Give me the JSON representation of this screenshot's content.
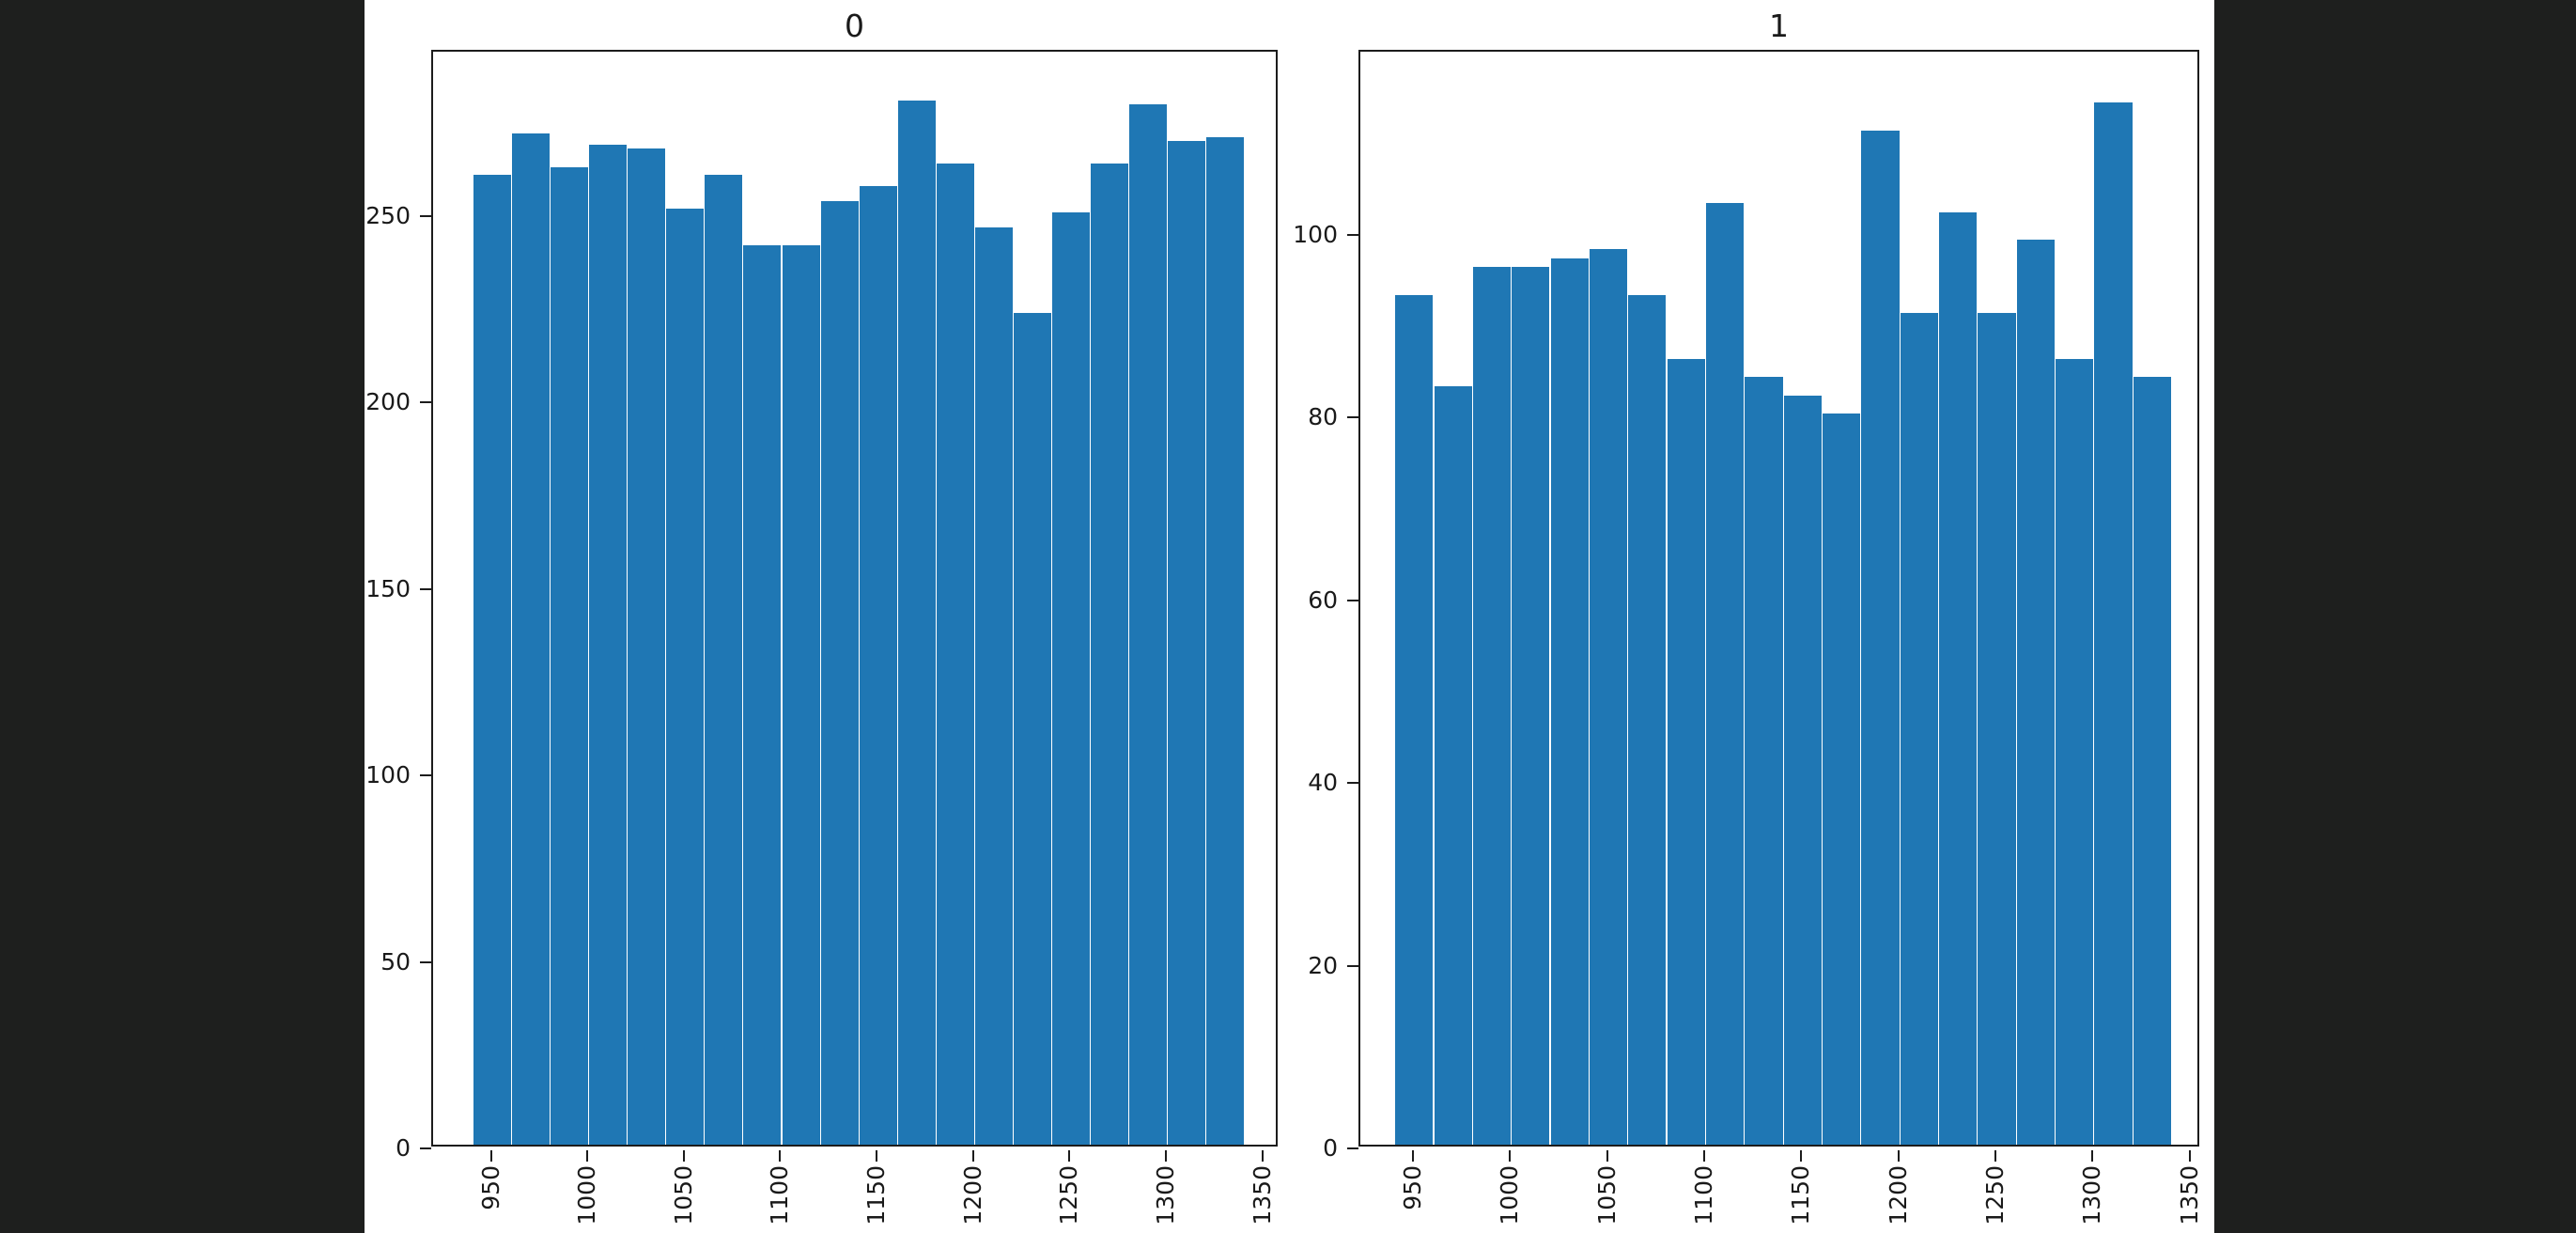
{
  "page": {
    "background_color": "#1e1f1e",
    "figure_background_color": "#ffffff",
    "spine_color": "#1c1c1c",
    "text_color": "#1a1a1a"
  },
  "chart_data": [
    {
      "type": "bar",
      "subtype": "histogram",
      "title": "0",
      "bar_color": "#1f77b4",
      "bin_start": 941,
      "bin_width": 20,
      "values": [
        260,
        271,
        262,
        268,
        267,
        251,
        260,
        241,
        241,
        253,
        257,
        280,
        263,
        246,
        223,
        250,
        263,
        279,
        269,
        270
      ],
      "x_ticks": [
        950,
        1000,
        1050,
        1100,
        1150,
        1200,
        1250,
        1300,
        1350
      ],
      "y_ticks": [
        0,
        50,
        100,
        150,
        200,
        250
      ],
      "xlim": [
        920,
        1359
      ],
      "ylim": [
        0,
        294
      ],
      "x_tick_rotation": 90,
      "grid": false,
      "legend": null,
      "xlabel": "",
      "ylabel": ""
    },
    {
      "type": "bar",
      "subtype": "histogram",
      "title": "1",
      "bar_color": "#1f77b4",
      "bin_start": 941,
      "bin_width": 20,
      "values": [
        93,
        83,
        96,
        96,
        97,
        98,
        93,
        86,
        103,
        84,
        82,
        80,
        111,
        91,
        102,
        91,
        99,
        86,
        114,
        84
      ],
      "x_ticks": [
        950,
        1000,
        1050,
        1100,
        1150,
        1200,
        1250,
        1300,
        1350
      ],
      "y_ticks": [
        0,
        20,
        40,
        60,
        80,
        100
      ],
      "xlim": [
        923,
        1356
      ],
      "ylim": [
        0,
        120
      ],
      "x_tick_rotation": 90,
      "grid": false,
      "legend": null,
      "xlabel": "",
      "ylabel": ""
    }
  ]
}
